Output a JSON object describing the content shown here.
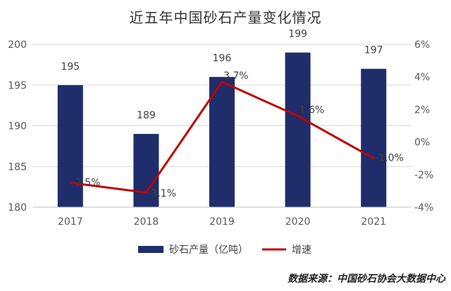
{
  "chart_data": {
    "type": "bar",
    "title": "近五年中国砂石产量变化情况",
    "categories": [
      "2017",
      "2018",
      "2019",
      "2020",
      "2021"
    ],
    "series": [
      {
        "name": "砂石产量（亿吨）",
        "kind": "bar",
        "axis": "left",
        "color": "#1f2d6b",
        "values": [
          195,
          189,
          196,
          199,
          197
        ],
        "labels": [
          "195",
          "189",
          "196",
          "199",
          "197"
        ]
      },
      {
        "name": "增速",
        "kind": "line",
        "axis": "right",
        "color": "#c00000",
        "values": [
          -2.5,
          -3.1,
          3.7,
          1.6,
          -1.0
        ],
        "labels": [
          "-2.5%",
          "-3.1%",
          "3.7%",
          "1.6%",
          "-1.0%"
        ]
      }
    ],
    "y_left": {
      "min": 180,
      "max": 200,
      "ticks": [
        "180",
        "185",
        "190",
        "195",
        "200"
      ]
    },
    "y_right": {
      "min": -4,
      "max": 6,
      "ticks": [
        "-4%",
        "-2%",
        "0%",
        "2%",
        "4%",
        "6%"
      ]
    },
    "grid": true,
    "legend_position": "bottom"
  },
  "source_note": "数据来源：中国砂石协会大数据中心"
}
